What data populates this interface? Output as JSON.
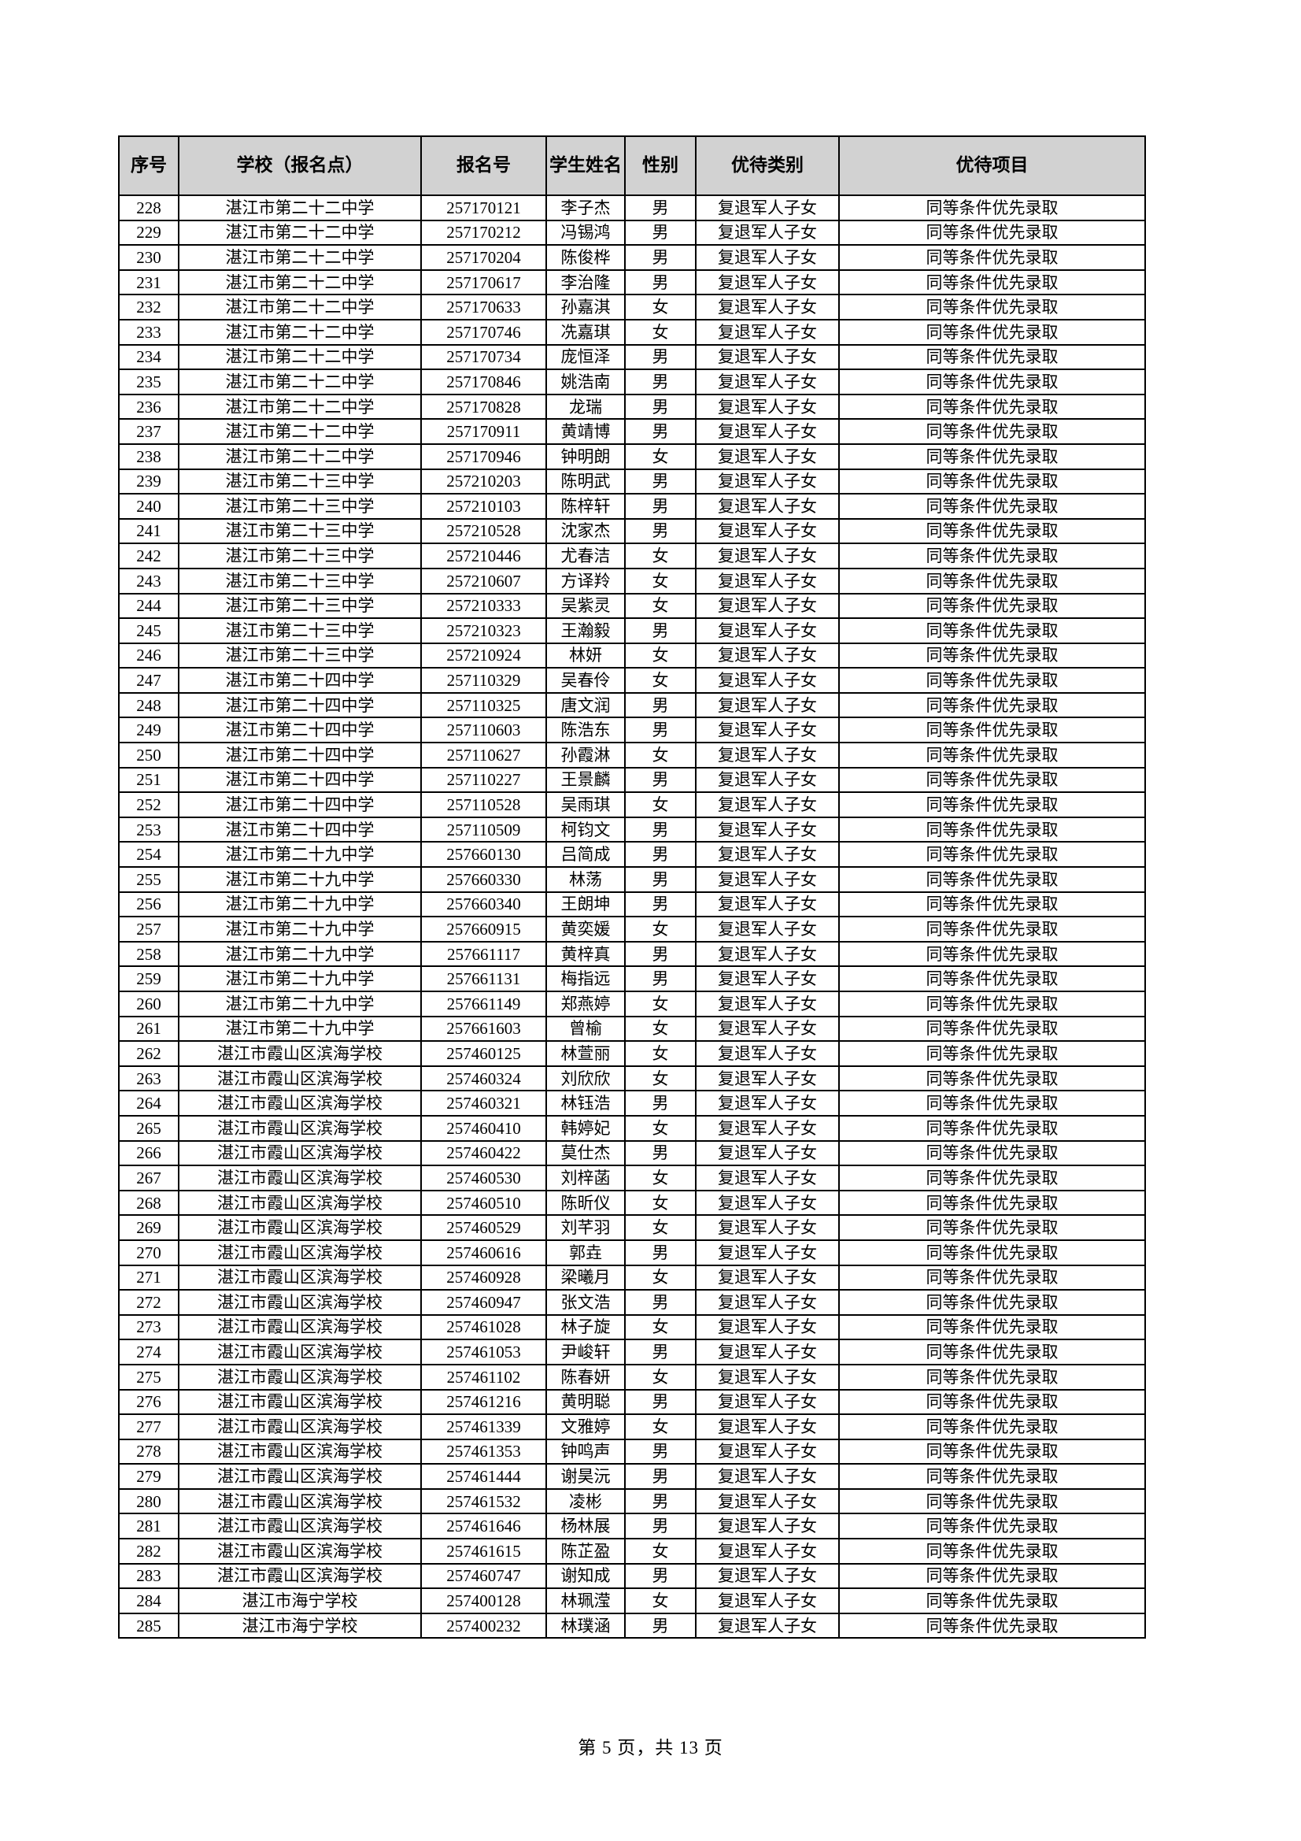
{
  "table": {
    "headers": [
      "序号",
      "学校（报名点）",
      "报名号",
      "学生姓名",
      "性别",
      "优待类别",
      "优待项目"
    ],
    "rows": [
      [
        "228",
        "湛江市第二十二中学",
        "257170121",
        "李子杰",
        "男",
        "复退军人子女",
        "同等条件优先录取"
      ],
      [
        "229",
        "湛江市第二十二中学",
        "257170212",
        "冯锡鸿",
        "男",
        "复退军人子女",
        "同等条件优先录取"
      ],
      [
        "230",
        "湛江市第二十二中学",
        "257170204",
        "陈俊桦",
        "男",
        "复退军人子女",
        "同等条件优先录取"
      ],
      [
        "231",
        "湛江市第二十二中学",
        "257170617",
        "李治隆",
        "男",
        "复退军人子女",
        "同等条件优先录取"
      ],
      [
        "232",
        "湛江市第二十二中学",
        "257170633",
        "孙嘉淇",
        "女",
        "复退军人子女",
        "同等条件优先录取"
      ],
      [
        "233",
        "湛江市第二十二中学",
        "257170746",
        "冼嘉琪",
        "女",
        "复退军人子女",
        "同等条件优先录取"
      ],
      [
        "234",
        "湛江市第二十二中学",
        "257170734",
        "庞恒泽",
        "男",
        "复退军人子女",
        "同等条件优先录取"
      ],
      [
        "235",
        "湛江市第二十二中学",
        "257170846",
        "姚浩南",
        "男",
        "复退军人子女",
        "同等条件优先录取"
      ],
      [
        "236",
        "湛江市第二十二中学",
        "257170828",
        "龙瑞",
        "男",
        "复退军人子女",
        "同等条件优先录取"
      ],
      [
        "237",
        "湛江市第二十二中学",
        "257170911",
        "黄靖博",
        "男",
        "复退军人子女",
        "同等条件优先录取"
      ],
      [
        "238",
        "湛江市第二十二中学",
        "257170946",
        "钟明朗",
        "女",
        "复退军人子女",
        "同等条件优先录取"
      ],
      [
        "239",
        "湛江市第二十三中学",
        "257210203",
        "陈明武",
        "男",
        "复退军人子女",
        "同等条件优先录取"
      ],
      [
        "240",
        "湛江市第二十三中学",
        "257210103",
        "陈梓轩",
        "男",
        "复退军人子女",
        "同等条件优先录取"
      ],
      [
        "241",
        "湛江市第二十三中学",
        "257210528",
        "沈家杰",
        "男",
        "复退军人子女",
        "同等条件优先录取"
      ],
      [
        "242",
        "湛江市第二十三中学",
        "257210446",
        "尤春洁",
        "女",
        "复退军人子女",
        "同等条件优先录取"
      ],
      [
        "243",
        "湛江市第二十三中学",
        "257210607",
        "方译羚",
        "女",
        "复退军人子女",
        "同等条件优先录取"
      ],
      [
        "244",
        "湛江市第二十三中学",
        "257210333",
        "吴紫灵",
        "女",
        "复退军人子女",
        "同等条件优先录取"
      ],
      [
        "245",
        "湛江市第二十三中学",
        "257210323",
        "王瀚毅",
        "男",
        "复退军人子女",
        "同等条件优先录取"
      ],
      [
        "246",
        "湛江市第二十三中学",
        "257210924",
        "林妍",
        "女",
        "复退军人子女",
        "同等条件优先录取"
      ],
      [
        "247",
        "湛江市第二十四中学",
        "257110329",
        "吴春伶",
        "女",
        "复退军人子女",
        "同等条件优先录取"
      ],
      [
        "248",
        "湛江市第二十四中学",
        "257110325",
        "唐文润",
        "男",
        "复退军人子女",
        "同等条件优先录取"
      ],
      [
        "249",
        "湛江市第二十四中学",
        "257110603",
        "陈浩东",
        "男",
        "复退军人子女",
        "同等条件优先录取"
      ],
      [
        "250",
        "湛江市第二十四中学",
        "257110627",
        "孙霞淋",
        "女",
        "复退军人子女",
        "同等条件优先录取"
      ],
      [
        "251",
        "湛江市第二十四中学",
        "257110227",
        "王景麟",
        "男",
        "复退军人子女",
        "同等条件优先录取"
      ],
      [
        "252",
        "湛江市第二十四中学",
        "257110528",
        "吴雨琪",
        "女",
        "复退军人子女",
        "同等条件优先录取"
      ],
      [
        "253",
        "湛江市第二十四中学",
        "257110509",
        "柯钧文",
        "男",
        "复退军人子女",
        "同等条件优先录取"
      ],
      [
        "254",
        "湛江市第二十九中学",
        "257660130",
        "吕简成",
        "男",
        "复退军人子女",
        "同等条件优先录取"
      ],
      [
        "255",
        "湛江市第二十九中学",
        "257660330",
        "林荡",
        "男",
        "复退军人子女",
        "同等条件优先录取"
      ],
      [
        "256",
        "湛江市第二十九中学",
        "257660340",
        "王朗坤",
        "男",
        "复退军人子女",
        "同等条件优先录取"
      ],
      [
        "257",
        "湛江市第二十九中学",
        "257660915",
        "黄奕媛",
        "女",
        "复退军人子女",
        "同等条件优先录取"
      ],
      [
        "258",
        "湛江市第二十九中学",
        "257661117",
        "黄梓真",
        "男",
        "复退军人子女",
        "同等条件优先录取"
      ],
      [
        "259",
        "湛江市第二十九中学",
        "257661131",
        "梅指远",
        "男",
        "复退军人子女",
        "同等条件优先录取"
      ],
      [
        "260",
        "湛江市第二十九中学",
        "257661149",
        "郑燕婷",
        "女",
        "复退军人子女",
        "同等条件优先录取"
      ],
      [
        "261",
        "湛江市第二十九中学",
        "257661603",
        "曾榆",
        "女",
        "复退军人子女",
        "同等条件优先录取"
      ],
      [
        "262",
        "湛江市霞山区滨海学校",
        "257460125",
        "林萱丽",
        "女",
        "复退军人子女",
        "同等条件优先录取"
      ],
      [
        "263",
        "湛江市霞山区滨海学校",
        "257460324",
        "刘欣欣",
        "女",
        "复退军人子女",
        "同等条件优先录取"
      ],
      [
        "264",
        "湛江市霞山区滨海学校",
        "257460321",
        "林钰浩",
        "男",
        "复退军人子女",
        "同等条件优先录取"
      ],
      [
        "265",
        "湛江市霞山区滨海学校",
        "257460410",
        "韩婷妃",
        "女",
        "复退军人子女",
        "同等条件优先录取"
      ],
      [
        "266",
        "湛江市霞山区滨海学校",
        "257460422",
        "莫仕杰",
        "男",
        "复退军人子女",
        "同等条件优先录取"
      ],
      [
        "267",
        "湛江市霞山区滨海学校",
        "257460530",
        "刘梓菡",
        "女",
        "复退军人子女",
        "同等条件优先录取"
      ],
      [
        "268",
        "湛江市霞山区滨海学校",
        "257460510",
        "陈昕仪",
        "女",
        "复退军人子女",
        "同等条件优先录取"
      ],
      [
        "269",
        "湛江市霞山区滨海学校",
        "257460529",
        "刘芊羽",
        "女",
        "复退军人子女",
        "同等条件优先录取"
      ],
      [
        "270",
        "湛江市霞山区滨海学校",
        "257460616",
        "郭垚",
        "男",
        "复退军人子女",
        "同等条件优先录取"
      ],
      [
        "271",
        "湛江市霞山区滨海学校",
        "257460928",
        "梁曦月",
        "女",
        "复退军人子女",
        "同等条件优先录取"
      ],
      [
        "272",
        "湛江市霞山区滨海学校",
        "257460947",
        "张文浩",
        "男",
        "复退军人子女",
        "同等条件优先录取"
      ],
      [
        "273",
        "湛江市霞山区滨海学校",
        "257461028",
        "林子旋",
        "女",
        "复退军人子女",
        "同等条件优先录取"
      ],
      [
        "274",
        "湛江市霞山区滨海学校",
        "257461053",
        "尹峻轩",
        "男",
        "复退军人子女",
        "同等条件优先录取"
      ],
      [
        "275",
        "湛江市霞山区滨海学校",
        "257461102",
        "陈春妍",
        "女",
        "复退军人子女",
        "同等条件优先录取"
      ],
      [
        "276",
        "湛江市霞山区滨海学校",
        "257461216",
        "黄明聪",
        "男",
        "复退军人子女",
        "同等条件优先录取"
      ],
      [
        "277",
        "湛江市霞山区滨海学校",
        "257461339",
        "文雅婷",
        "女",
        "复退军人子女",
        "同等条件优先录取"
      ],
      [
        "278",
        "湛江市霞山区滨海学校",
        "257461353",
        "钟鸣声",
        "男",
        "复退军人子女",
        "同等条件优先录取"
      ],
      [
        "279",
        "湛江市霞山区滨海学校",
        "257461444",
        "谢昊沅",
        "男",
        "复退军人子女",
        "同等条件优先录取"
      ],
      [
        "280",
        "湛江市霞山区滨海学校",
        "257461532",
        "凌彬",
        "男",
        "复退军人子女",
        "同等条件优先录取"
      ],
      [
        "281",
        "湛江市霞山区滨海学校",
        "257461646",
        "杨林展",
        "男",
        "复退军人子女",
        "同等条件优先录取"
      ],
      [
        "282",
        "湛江市霞山区滨海学校",
        "257461615",
        "陈芷盈",
        "女",
        "复退军人子女",
        "同等条件优先录取"
      ],
      [
        "283",
        "湛江市霞山区滨海学校",
        "257460747",
        "谢知成",
        "男",
        "复退军人子女",
        "同等条件优先录取"
      ],
      [
        "284",
        "湛江市海宁学校",
        "257400128",
        "林珮滢",
        "女",
        "复退军人子女",
        "同等条件优先录取"
      ],
      [
        "285",
        "湛江市海宁学校",
        "257400232",
        "林璞涵",
        "男",
        "复退军人子女",
        "同等条件优先录取"
      ]
    ]
  },
  "footer": {
    "page_indicator": "第 5 页，共 13 页"
  }
}
